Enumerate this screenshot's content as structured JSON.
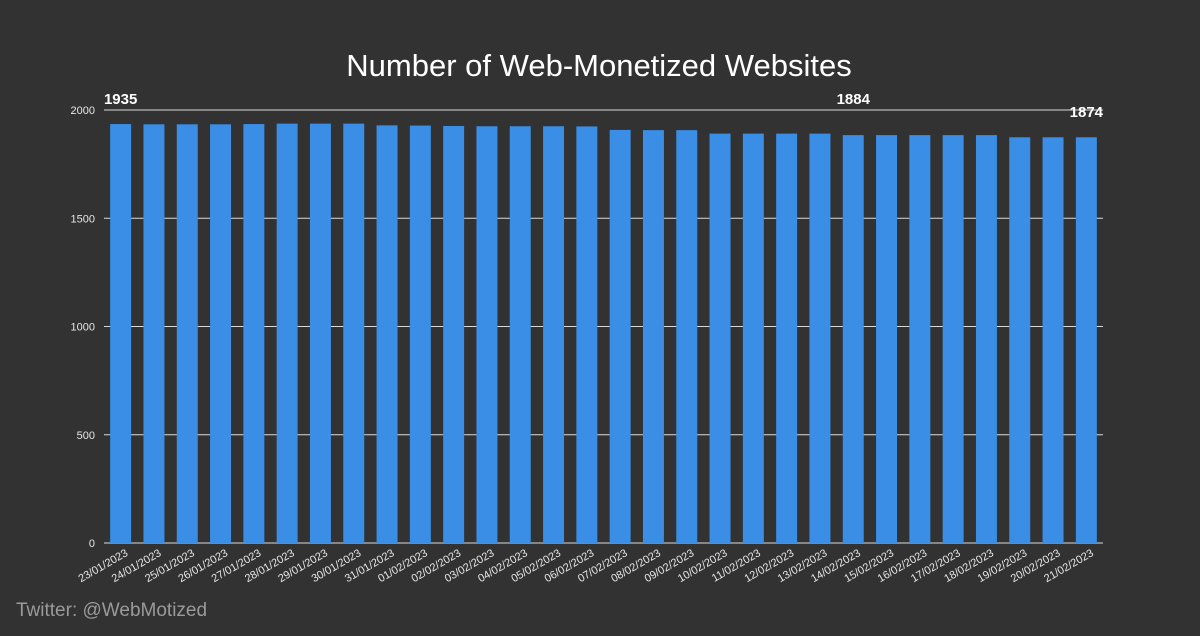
{
  "credit": "Twitter: @WebMotized",
  "colors": {
    "background": "#323232",
    "bar": "#3a8ee6",
    "grid": "#d9d9d9",
    "text": "#ffffff"
  },
  "chart_data": {
    "type": "bar",
    "title": "Number of Web-Monetized Websites",
    "xlabel": "",
    "ylabel": "",
    "ylim": [
      0,
      2000
    ],
    "yticks": [
      0,
      500,
      1000,
      1500,
      2000
    ],
    "grid": true,
    "legend": "none",
    "categories": [
      "23/01/2023",
      "24/01/2023",
      "25/01/2023",
      "26/01/2023",
      "27/01/2023",
      "28/01/2023",
      "29/01/2023",
      "30/01/2023",
      "31/01/2023",
      "01/02/2023",
      "02/02/2023",
      "03/02/2023",
      "04/02/2023",
      "05/02/2023",
      "06/02/2023",
      "07/02/2023",
      "08/02/2023",
      "09/02/2023",
      "10/02/2023",
      "11/02/2023",
      "12/02/2023",
      "13/02/2023",
      "14/02/2023",
      "15/02/2023",
      "16/02/2023",
      "17/02/2023",
      "18/02/2023",
      "19/02/2023",
      "20/02/2023",
      "21/02/2023"
    ],
    "values": [
      1935,
      1934,
      1934,
      1934,
      1935,
      1937,
      1937,
      1937,
      1929,
      1928,
      1926,
      1925,
      1925,
      1925,
      1924,
      1908,
      1907,
      1907,
      1891,
      1891,
      1891,
      1891,
      1884,
      1884,
      1884,
      1884,
      1884,
      1874,
      1874,
      1874
    ],
    "annotations": [
      {
        "index": 0,
        "text": "1935"
      },
      {
        "index": 22,
        "text": "1884"
      },
      {
        "index": 29,
        "text": "1874"
      }
    ]
  }
}
